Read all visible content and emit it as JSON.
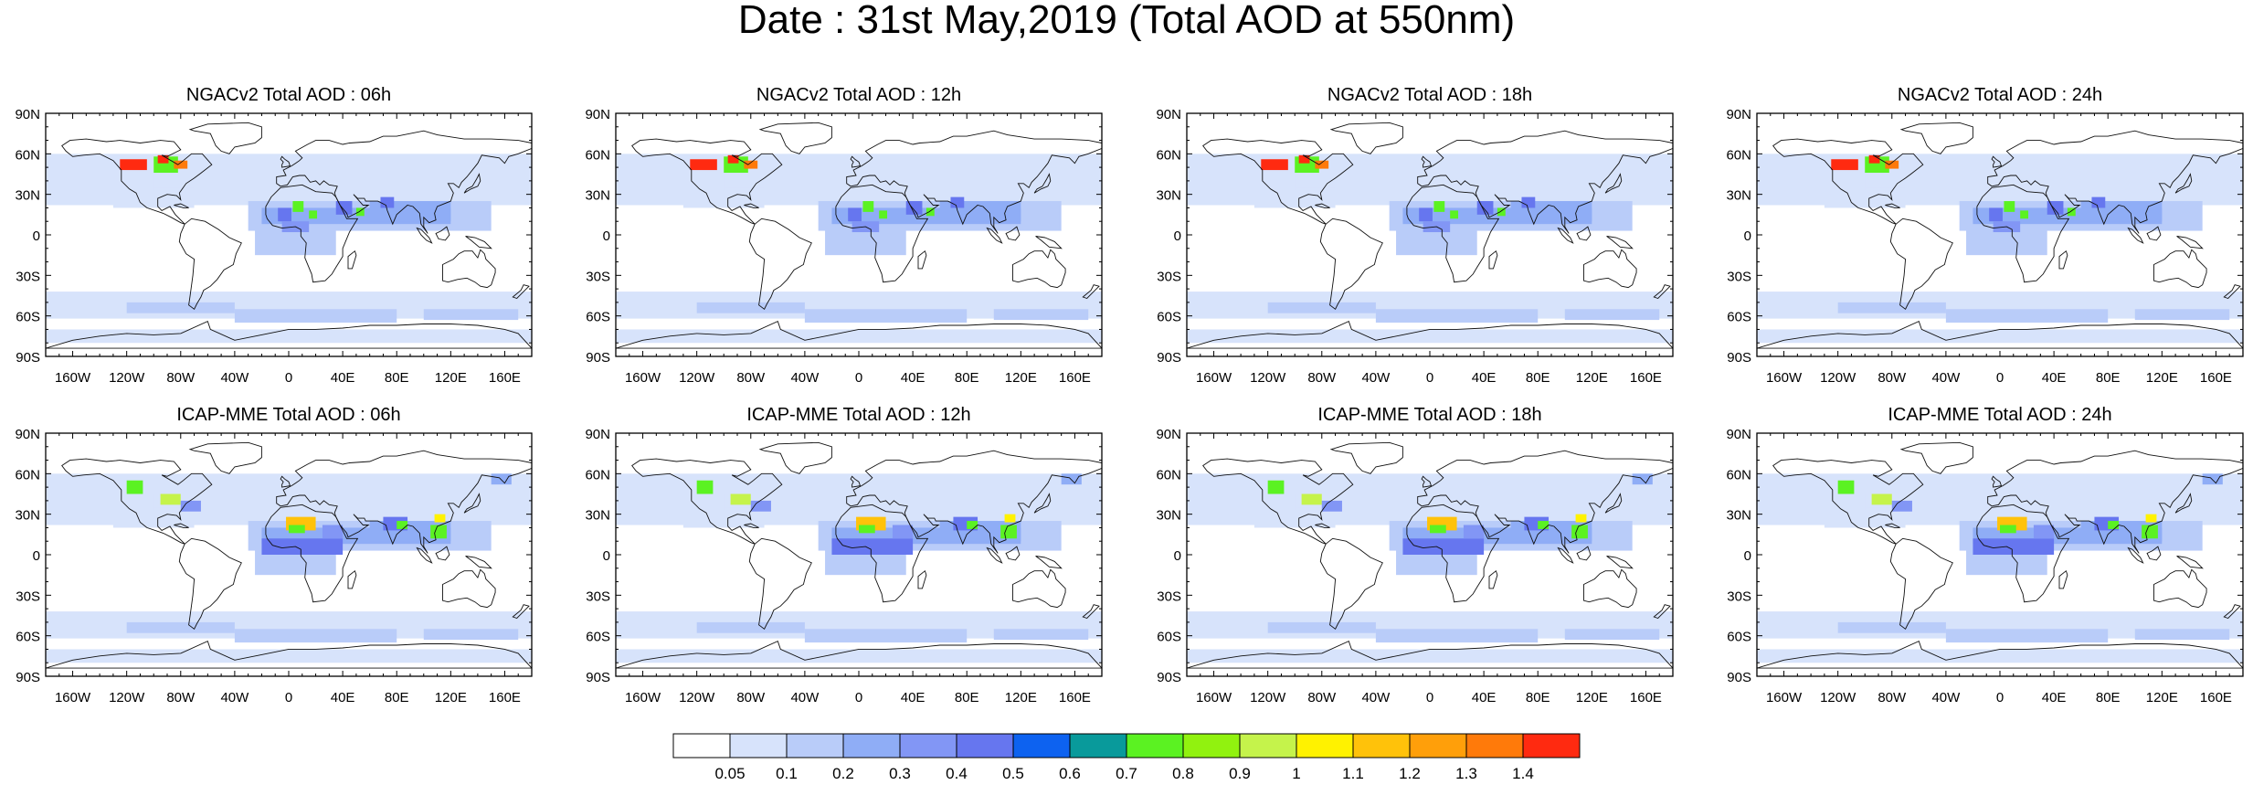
{
  "title": "Date : 31st May,2019 (Total AOD at 550nm)",
  "axes": {
    "lat_labels": [
      "90N",
      "60N",
      "30N",
      "0",
      "30S",
      "60S",
      "90S"
    ],
    "lon_labels": [
      "160W",
      "120W",
      "80W",
      "40W",
      "0",
      "40E",
      "80E",
      "120E",
      "160E"
    ],
    "lon_values": [
      -160,
      -120,
      -80,
      -40,
      0,
      40,
      80,
      120,
      160
    ],
    "lat_values": [
      90,
      60,
      30,
      0,
      -30,
      -60,
      -90
    ]
  },
  "panels": [
    {
      "title": "NGACv2 Total AOD : 06h",
      "model": "NGACv2",
      "hour": "06h"
    },
    {
      "title": "NGACv2 Total AOD : 12h",
      "model": "NGACv2",
      "hour": "12h"
    },
    {
      "title": "NGACv2 Total AOD : 18h",
      "model": "NGACv2",
      "hour": "18h"
    },
    {
      "title": "NGACv2 Total AOD : 24h",
      "model": "NGACv2",
      "hour": "24h"
    },
    {
      "title": "ICAP-MME Total AOD : 06h",
      "model": "ICAP-MME",
      "hour": "06h"
    },
    {
      "title": "ICAP-MME Total AOD : 12h",
      "model": "ICAP-MME",
      "hour": "12h"
    },
    {
      "title": "ICAP-MME Total AOD : 18h",
      "model": "ICAP-MME",
      "hour": "18h"
    },
    {
      "title": "ICAP-MME Total AOD : 24h",
      "model": "ICAP-MME",
      "hour": "24h"
    }
  ],
  "colorbar": {
    "labels": [
      "0.05",
      "0.1",
      "0.2",
      "0.3",
      "0.4",
      "0.5",
      "0.6",
      "0.7",
      "0.8",
      "0.9",
      "1",
      "1.1",
      "1.2",
      "1.3",
      "1.4"
    ],
    "colors": [
      "#ffffff",
      "#d7e3fb",
      "#b9ccf9",
      "#8fadf6",
      "#8296f5",
      "#6676ef",
      "#0d62f0",
      "#099a9b",
      "#5bf222",
      "#91f20f",
      "#c5f34b",
      "#fff200",
      "#ffc20a",
      "#ff9f0a",
      "#ff7a0a",
      "#ff2a10"
    ]
  }
}
